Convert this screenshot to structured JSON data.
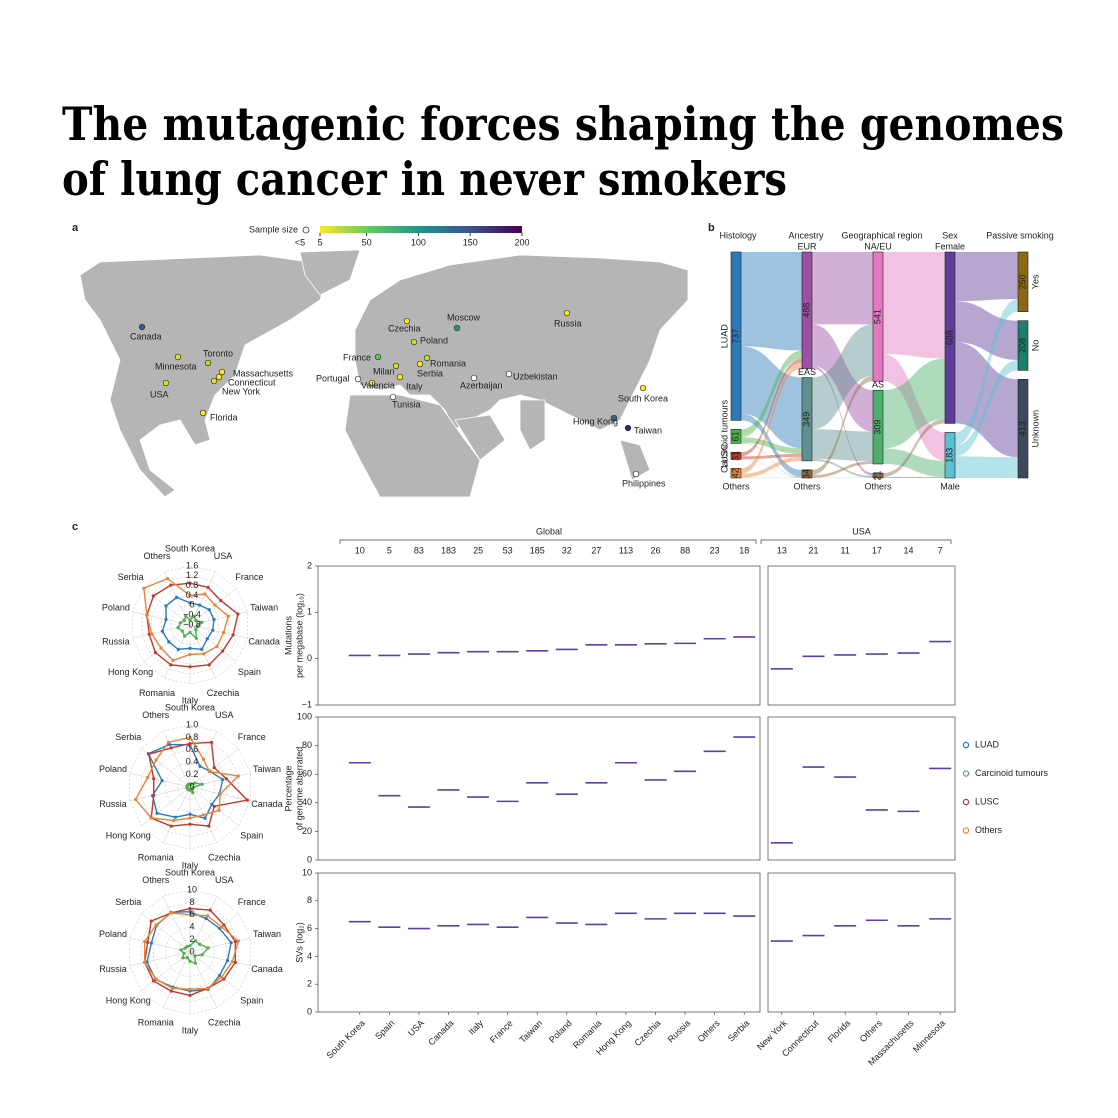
{
  "title": [
    "The mutagenic forces shaping the genomes",
    "of lung cancer in never smokers"
  ],
  "panel_a": {
    "label": "a",
    "legend": {
      "title": "Sample size",
      "small_label": "<5",
      "lim": [
        5,
        200
      ],
      "ticks": [
        5,
        50,
        100,
        150,
        200
      ],
      "colormap": [
        "#fde725",
        "#5ec962",
        "#21918c",
        "#3b528b",
        "#440154"
      ]
    },
    "locations": [
      {
        "name": "Canada",
        "color": "#3b5d8b"
      },
      {
        "name": "Minnesota",
        "color": "#e8e41c"
      },
      {
        "name": "Toronto",
        "color": "#b5de2b"
      },
      {
        "name": "Massachusetts",
        "color": "#fde725"
      },
      {
        "name": "Connecticut",
        "color": "#fde725"
      },
      {
        "name": "New York",
        "color": "#e4e31d"
      },
      {
        "name": "USA",
        "color": "#d8e219"
      },
      {
        "name": "Florida",
        "color": "#fde725"
      },
      {
        "name": "Moscow",
        "color": "#2a9d7a"
      },
      {
        "name": "Russia",
        "color": "#fde725"
      },
      {
        "name": "Czechia",
        "color": "#fde725"
      },
      {
        "name": "Poland",
        "color": "#c8e020"
      },
      {
        "name": "France",
        "color": "#5ec962"
      },
      {
        "name": "Milan",
        "color": "#d0e11c"
      },
      {
        "name": "Portugal",
        "color": "#ffffff"
      },
      {
        "name": "Valencia",
        "color": "#fde725"
      },
      {
        "name": "Italy",
        "color": "#fde725"
      },
      {
        "name": "Serbia",
        "color": "#fde725"
      },
      {
        "name": "Romania",
        "color": "#c2df23"
      },
      {
        "name": "Tunisia",
        "color": "#ffffff"
      },
      {
        "name": "Azerbaijan",
        "color": "#ffffff"
      },
      {
        "name": "Uzbekistan",
        "color": "#ffffff"
      },
      {
        "name": "South Korea",
        "color": "#fde725"
      },
      {
        "name": "Hong Kong",
        "color": "#31688e"
      },
      {
        "name": "Taiwan",
        "color": "#3b1f6e"
      },
      {
        "name": "Philippines",
        "color": "#ffffff"
      }
    ]
  },
  "panel_b": {
    "label": "b",
    "stages": [
      {
        "name": "Histology",
        "nodes": [
          {
            "name": "LUAD",
            "value": 737,
            "color": "#2a7ab9"
          },
          {
            "name": "Carcinoid tumours",
            "value": 61,
            "color": "#4daf4a"
          },
          {
            "name": "LUSC",
            "value": 31,
            "color": "#c0392b"
          },
          {
            "name": "Others",
            "value": 42,
            "color": "#e8833a"
          }
        ]
      },
      {
        "name": "Ancestry",
        "nodes": [
          {
            "name": "EUR",
            "value": 488,
            "color": "#9b4fa5"
          },
          {
            "name": "EAS",
            "value": 349,
            "color": "#5f8f8f"
          },
          {
            "name": "Others",
            "value": 34,
            "color": "#8c6d46"
          }
        ]
      },
      {
        "name": "Geographical region",
        "nodes": [
          {
            "name": "NA/EU",
            "value": 541,
            "color": "#e377c2"
          },
          {
            "name": "AS",
            "value": 309,
            "color": "#4caf6a"
          },
          {
            "name": "Others",
            "value": 21,
            "color": "#8c6d46"
          }
        ]
      },
      {
        "name": "Sex",
        "nodes": [
          {
            "name": "Female",
            "value": 688,
            "color": "#5e3c99"
          },
          {
            "name": "Male",
            "value": 183,
            "color": "#5bc0d0"
          }
        ]
      },
      {
        "name": "Passive smoking",
        "nodes": [
          {
            "name": "Yes",
            "value": 250,
            "color": "#8b6914"
          },
          {
            "name": "No",
            "value": 208,
            "color": "#1b7f6e"
          },
          {
            "name": "Unknown",
            "value": 413,
            "color": "#3d4a5c"
          }
        ]
      }
    ]
  },
  "panel_c": {
    "label": "c",
    "groups": [
      {
        "name": "Global",
        "categories": [
          "South Korea",
          "Spain",
          "USA",
          "Canada",
          "Italy",
          "France",
          "Taiwan",
          "Poland",
          "Romania",
          "Hong Kong",
          "Czechia",
          "Russia",
          "Others",
          "Serbia"
        ],
        "counts": [
          10,
          5,
          83,
          183,
          25,
          53,
          185,
          32,
          27,
          113,
          26,
          88,
          23,
          18
        ]
      },
      {
        "name": "USA",
        "categories": [
          "New York",
          "Connecticut",
          "Florida",
          "Others",
          "Massachusetts",
          "Minnesota"
        ],
        "counts": [
          13,
          21,
          11,
          17,
          14,
          7
        ]
      }
    ],
    "panels": [
      {
        "ylabel": [
          "Mutations",
          "per megabase (log₁₀)"
        ],
        "ylim": [
          -1,
          2
        ],
        "yticks": [
          {
            "value": -1,
            "label": "−1"
          },
          0,
          1,
          2
        ],
        "medians": [
          [
            0.07,
            0.07,
            0.1,
            0.13,
            0.15,
            0.15,
            0.17,
            0.2,
            0.3,
            0.3,
            0.32,
            0.33,
            0.43,
            0.47
          ],
          [
            -0.22,
            0.05,
            0.08,
            0.1,
            0.12,
            0.37
          ]
        ]
      },
      {
        "ylabel": [
          "Percentage",
          "of genome aberrated"
        ],
        "ylim": [
          0,
          100
        ],
        "yticks": [
          0,
          20,
          40,
          60,
          80,
          100
        ],
        "medians": [
          [
            68,
            45,
            37,
            49,
            44,
            41,
            54,
            46,
            54,
            68,
            56,
            62,
            76,
            86
          ],
          [
            12,
            65,
            58,
            35,
            34,
            64
          ]
        ]
      },
      {
        "ylabel": [
          "SVs (log₂)"
        ],
        "ylim": [
          0,
          10
        ],
        "yticks": [
          0,
          2,
          4,
          6,
          8,
          10
        ],
        "medians": [
          [
            6.5,
            6.1,
            6.0,
            6.2,
            6.3,
            6.1,
            6.8,
            6.4,
            6.3,
            7.1,
            6.7,
            7.1,
            7.1,
            6.9
          ],
          [
            5.1,
            5.5,
            6.2,
            6.6,
            6.2,
            6.7
          ]
        ]
      }
    ],
    "median_color": "#5b3fa6",
    "legend": [
      {
        "name": "LUAD",
        "color": "#2a7ab9"
      },
      {
        "name": "Carcinoid tumours",
        "color": "#4daf4a"
      },
      {
        "name": "LUSC",
        "color": "#c0392b"
      },
      {
        "name": "Others",
        "color": "#e8833a"
      }
    ],
    "radar_axes": [
      "South Korea",
      "USA",
      "France",
      "Taiwan",
      "Canada",
      "Spain",
      "Czechia",
      "Italy",
      "Romania",
      "Hong Kong",
      "Russia",
      "Poland",
      "Serbia",
      "Others"
    ],
    "radars": [
      {
        "rlim": [
          -0.8,
          1.6
        ],
        "ticks": [
          1.6,
          1.2,
          0.8,
          0.4,
          0,
          {
            "value": -0.4,
            "label": "−0.4"
          },
          {
            "value": -0.8,
            "label": "−0.8"
          }
        ],
        "series": [
          {
            "color": "#2a7ab9",
            "values": [
              0.1,
              0.1,
              0.2,
              0.2,
              0.15,
              0.1,
              0.3,
              0.15,
              0.3,
              0.3,
              0.35,
              0.2,
              0.45,
              0.45
            ]
          },
          {
            "color": "#c0392b",
            "values": [
              0.9,
              0.9,
              0.8,
              1.2,
              1.0,
              0.9,
              1.0,
              0.9,
              1.0,
              1.0,
              0.9,
              1.0,
              1.1,
              1.0
            ]
          },
          {
            "color": "#e8833a",
            "values": [
              0.4,
              0.6,
              0.5,
              0.8,
              0.6,
              0.6,
              0.5,
              0.4,
              0.8,
              0.7,
              0.8,
              1.0,
              1.6,
              1.3
            ]
          },
          {
            "color": "#4daf4a",
            "values": [
              -0.6,
              -0.4,
              -0.5,
              -0.3,
              -0.5,
              -0.5,
              -0.2,
              -0.5,
              -0.3,
              -0.4,
              -0.3,
              -0.4,
              -0.5,
              -0.4
            ]
          }
        ]
      },
      {
        "rlim": [
          0,
          1
        ],
        "ticks": [
          {
            "value": 1,
            "label": "1.0"
          },
          0.8,
          0.6,
          0.4,
          0.2,
          0
        ],
        "series": [
          {
            "color": "#2a7ab9",
            "values": [
              0.68,
              0.37,
              0.41,
              0.54,
              0.49,
              0.45,
              0.56,
              0.44,
              0.54,
              0.68,
              0.62,
              0.46,
              0.86,
              0.76
            ]
          },
          {
            "color": "#c0392b",
            "values": [
              0.7,
              0.8,
              0.5,
              0.6,
              0.95,
              0.5,
              0.7,
              0.6,
              0.7,
              0.8,
              0.6,
              0.6,
              0.85,
              0.7
            ]
          },
          {
            "color": "#e8833a",
            "values": [
              0.8,
              0.5,
              0.4,
              0.8,
              0.5,
              0.6,
              0.5,
              0.5,
              0.6,
              0.8,
              0.9,
              0.7,
              0.7,
              0.8
            ]
          },
          {
            "color": "#4daf4a",
            "values": [
              0.05,
              0.05,
              0.1,
              0.2,
              0.05,
              0.05,
              0.1,
              0.05,
              0.05,
              0.05,
              0.05,
              0.05,
              0.05,
              0.05
            ]
          }
        ]
      },
      {
        "rlim": [
          0,
          10
        ],
        "ticks": [
          10,
          8,
          6,
          4,
          2,
          0
        ],
        "series": [
          {
            "color": "#2a7ab9",
            "values": [
              6.5,
              6.0,
              6.1,
              6.8,
              6.2,
              6.1,
              6.7,
              6.3,
              6.3,
              7.1,
              7.1,
              6.4,
              6.9,
              7.1
            ]
          },
          {
            "color": "#c0392b",
            "values": [
              7,
              7.5,
              7,
              7.5,
              7.5,
              7,
              6.5,
              7,
              7,
              7.5,
              7.5,
              7,
              8,
              7
            ]
          },
          {
            "color": "#e8833a",
            "values": [
              6,
              6.5,
              6.5,
              8,
              7,
              6.5,
              6.5,
              6,
              6.5,
              7,
              7.5,
              7.5,
              7,
              7
            ]
          },
          {
            "color": "#4daf4a",
            "values": [
              1,
              2,
              2,
              3,
              2,
              1,
              2,
              1.5,
              1,
              1.5,
              1,
              1.5,
              1,
              1
            ]
          }
        ]
      }
    ]
  }
}
